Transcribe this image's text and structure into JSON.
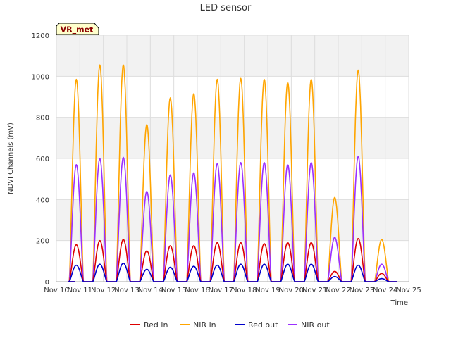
{
  "chart_data": {
    "type": "line",
    "title": "LED sensor",
    "xlabel": "Time",
    "ylabel": "NDVI Channels (mV)",
    "badge": "VR_met",
    "ylim": [
      0,
      1200
    ],
    "xlim": [
      10,
      25
    ],
    "y_ticks": [
      0,
      200,
      400,
      600,
      800,
      1000,
      1200
    ],
    "y_tick_labels": [
      "0",
      "200",
      "400",
      "600",
      "800",
      "1000",
      "1200"
    ],
    "x_ticks": [
      10,
      11,
      12,
      13,
      14,
      15,
      16,
      17,
      18,
      19,
      20,
      21,
      22,
      23,
      24,
      25
    ],
    "x_tick_labels": [
      "Nov 10",
      "Nov 11",
      "Nov 12",
      "Nov 13",
      "Nov 14",
      "Nov 15",
      "Nov 16",
      "Nov 17",
      "Nov 18",
      "Nov 19",
      "Nov 20",
      "Nov 21",
      "Nov 22",
      "Nov 23",
      "Nov 24",
      "Nov 25"
    ],
    "grid": true,
    "legend_position": "bottom",
    "day_centers": [
      10.85,
      11.85,
      12.85,
      13.85,
      14.85,
      15.85,
      16.85,
      17.85,
      18.85,
      19.85,
      20.85,
      21.85,
      22.85,
      23.85
    ],
    "series": [
      {
        "name": "Red in",
        "color": "#dd0000",
        "peaks": [
          180,
          200,
          205,
          150,
          175,
          175,
          190,
          190,
          185,
          190,
          190,
          50,
          210,
          40
        ]
      },
      {
        "name": "NIR in",
        "color": "#ffa500",
        "peaks": [
          985,
          1055,
          1055,
          765,
          895,
          915,
          985,
          990,
          985,
          970,
          985,
          410,
          1030,
          205
        ]
      },
      {
        "name": "Red out",
        "color": "#0000cc",
        "peaks": [
          80,
          85,
          90,
          60,
          70,
          75,
          80,
          85,
          85,
          85,
          85,
          25,
          80,
          15
        ]
      },
      {
        "name": "NIR out",
        "color": "#9b30ff",
        "peaks": [
          570,
          600,
          605,
          440,
          520,
          530,
          575,
          580,
          580,
          570,
          580,
          215,
          610,
          85
        ]
      }
    ]
  },
  "colors": {
    "plot_background": "#ffffff",
    "band_background": "#f2f2f2",
    "grid": "#dddddd",
    "badge_fill": "#ffffcc",
    "badge_border": "#000000"
  }
}
